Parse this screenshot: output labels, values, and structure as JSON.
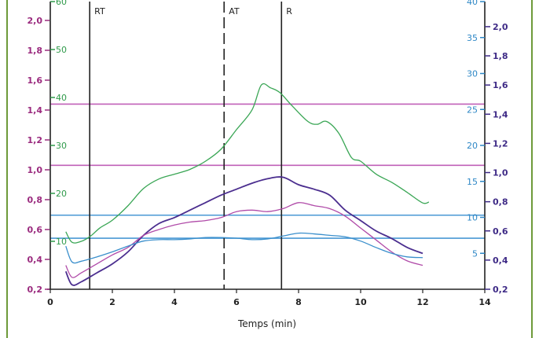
{
  "chart_data": {
    "type": "line",
    "title": "",
    "xlabel": "Temps (min)",
    "xlim": [
      0,
      14
    ],
    "x_ticks": [
      "0",
      "2",
      "4",
      "6",
      "8",
      "10",
      "12",
      "14"
    ],
    "axes": {
      "left_purple": {
        "range": [
          0.2,
          2.1
        ],
        "ticks": [
          "0,2",
          "0,4",
          "0,6",
          "0,8",
          "1,0",
          "1,2",
          "1,4",
          "1,6",
          "1,8",
          "2,0"
        ],
        "color": "#9a2a7e"
      },
      "left_green": {
        "range": [
          0,
          60
        ],
        "ticks": [
          "10",
          "20",
          "30",
          "40",
          "50",
          "60"
        ],
        "color": "#2f9a4a"
      },
      "right_blue": {
        "range": [
          0,
          40
        ],
        "ticks": [
          "5",
          "10",
          "15",
          "20",
          "25",
          "30",
          "35",
          "40"
        ],
        "color": "#2f88c6"
      },
      "right_purple": {
        "range": [
          0.2,
          2.0
        ],
        "ticks": [
          "0,2",
          "0,4",
          "0,6",
          "0,8",
          "1,0",
          "1,2",
          "1,4",
          "1,6",
          "1,8",
          "2,0"
        ],
        "color": "#3e2a86"
      }
    },
    "vertical_markers": [
      {
        "label": "RT",
        "x": 1.27,
        "style": "solid"
      },
      {
        "label": "AT",
        "x": 5.6,
        "style": "dashed"
      },
      {
        "label": "R",
        "x": 7.45,
        "style": "solid"
      }
    ],
    "horizontal_lines": [
      {
        "axis": "left_purple",
        "y": 1.44,
        "color": "#c060b8"
      },
      {
        "axis": "left_purple",
        "y": 1.03,
        "color": "#c060b8"
      },
      {
        "axis": "right_blue",
        "y": 10.3,
        "color": "#4a98d4"
      },
      {
        "axis": "right_blue",
        "y": 7.1,
        "color": "#4a98d4"
      }
    ],
    "series": [
      {
        "name": "green",
        "axis": "left_green",
        "color": "#3aa655",
        "x": [
          0.5,
          0.7,
          1.0,
          1.3,
          1.6,
          2.0,
          2.5,
          3.0,
          3.5,
          4.0,
          4.5,
          5.0,
          5.5,
          6.0,
          6.5,
          6.8,
          7.1,
          7.4,
          7.8,
          8.3,
          8.6,
          8.9,
          9.3,
          9.7,
          10.0,
          10.5,
          11.0,
          11.5,
          12.0,
          12.2
        ],
        "y": [
          12,
          9.8,
          10,
          11.1,
          12.8,
          14.4,
          17.4,
          21,
          23,
          24,
          25,
          26.7,
          29.2,
          33.3,
          37.4,
          42.6,
          42,
          41,
          38.2,
          35,
          34.4,
          35,
          32.5,
          27.5,
          26.7,
          24,
          22.3,
          20.2,
          18,
          18.2
        ]
      },
      {
        "name": "dark-purple",
        "axis": "left_purple",
        "color": "#4b2e8f",
        "x": [
          0.5,
          0.7,
          1.0,
          1.5,
          2.0,
          2.5,
          3.0,
          3.5,
          4.0,
          4.5,
          5.0,
          5.5,
          6.0,
          6.5,
          7.0,
          7.5,
          8.0,
          8.5,
          9.0,
          9.5,
          10.0,
          10.5,
          11.0,
          11.5,
          12.0
        ],
        "y": [
          0.32,
          0.23,
          0.25,
          0.31,
          0.37,
          0.45,
          0.56,
          0.64,
          0.68,
          0.73,
          0.78,
          0.83,
          0.87,
          0.91,
          0.94,
          0.95,
          0.9,
          0.87,
          0.83,
          0.73,
          0.66,
          0.59,
          0.54,
          0.48,
          0.44
        ]
      },
      {
        "name": "magenta",
        "axis": "left_purple",
        "color": "#b04aa8",
        "x": [
          0.5,
          0.7,
          1.0,
          1.5,
          2.0,
          2.5,
          3.0,
          3.5,
          4.0,
          4.5,
          5.0,
          5.5,
          6.0,
          6.5,
          7.0,
          7.5,
          8.0,
          8.5,
          9.0,
          9.5,
          10.0,
          10.5,
          11.0,
          11.5,
          12.0
        ],
        "y": [
          0.36,
          0.28,
          0.31,
          0.37,
          0.43,
          0.48,
          0.56,
          0.6,
          0.63,
          0.65,
          0.66,
          0.68,
          0.72,
          0.73,
          0.72,
          0.74,
          0.78,
          0.76,
          0.74,
          0.69,
          0.61,
          0.53,
          0.45,
          0.39,
          0.36
        ]
      },
      {
        "name": "blue",
        "axis": "right_blue",
        "color": "#3a8fcc",
        "x": [
          0.5,
          0.7,
          1.0,
          1.5,
          2.0,
          2.5,
          3.0,
          3.5,
          4.0,
          4.5,
          5.0,
          5.5,
          6.0,
          6.5,
          7.0,
          7.5,
          8.0,
          8.5,
          9.0,
          9.5,
          10.0,
          10.5,
          11.0,
          11.5,
          12.0
        ],
        "y": [
          6,
          3.8,
          3.9,
          4.5,
          5.2,
          6,
          6.7,
          6.9,
          6.9,
          7,
          7.2,
          7.2,
          7.1,
          6.9,
          7,
          7.4,
          7.8,
          7.7,
          7.5,
          7.3,
          6.7,
          5.8,
          5,
          4.5,
          4.4
        ]
      }
    ]
  }
}
